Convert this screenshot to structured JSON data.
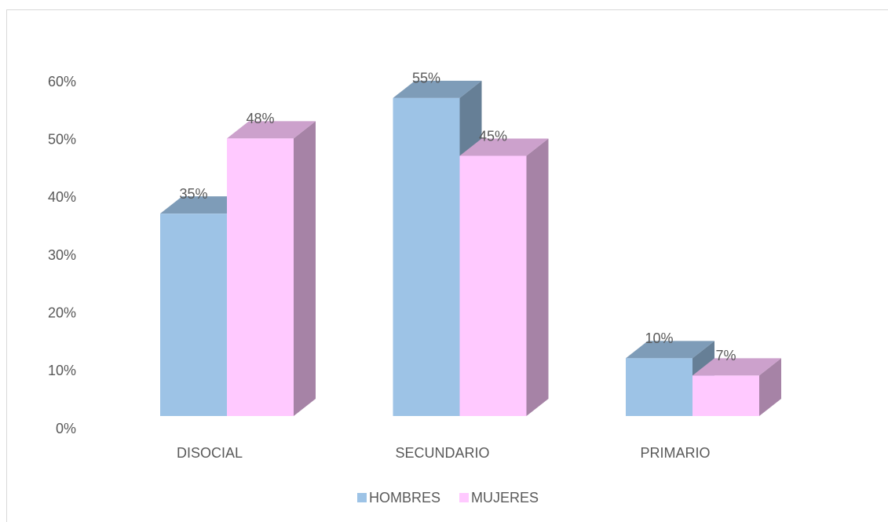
{
  "chart_data": {
    "type": "bar3d",
    "categories": [
      "DISOCIAL",
      "SECUNDARIO",
      "PRIMARIO"
    ],
    "series": [
      {
        "name": "HOMBRES",
        "color": "#9dc3e6",
        "values": [
          35,
          55,
          10
        ],
        "value_labels": [
          "35%",
          "55%",
          "10%"
        ]
      },
      {
        "name": "MUJERES",
        "color": "#ffc9ff",
        "values": [
          48,
          45,
          7
        ],
        "value_labels": [
          "48%",
          "45%",
          "7%"
        ]
      }
    ],
    "ylim": [
      0,
      60
    ],
    "yticks": [
      {
        "value": 0,
        "label": "0%"
      },
      {
        "value": 10,
        "label": "10%"
      },
      {
        "value": 20,
        "label": "20%"
      },
      {
        "value": 30,
        "label": "30%"
      },
      {
        "value": 40,
        "label": "40%"
      },
      {
        "value": 50,
        "label": "50%"
      },
      {
        "value": 60,
        "label": "60%"
      }
    ],
    "legend": "bottom"
  }
}
